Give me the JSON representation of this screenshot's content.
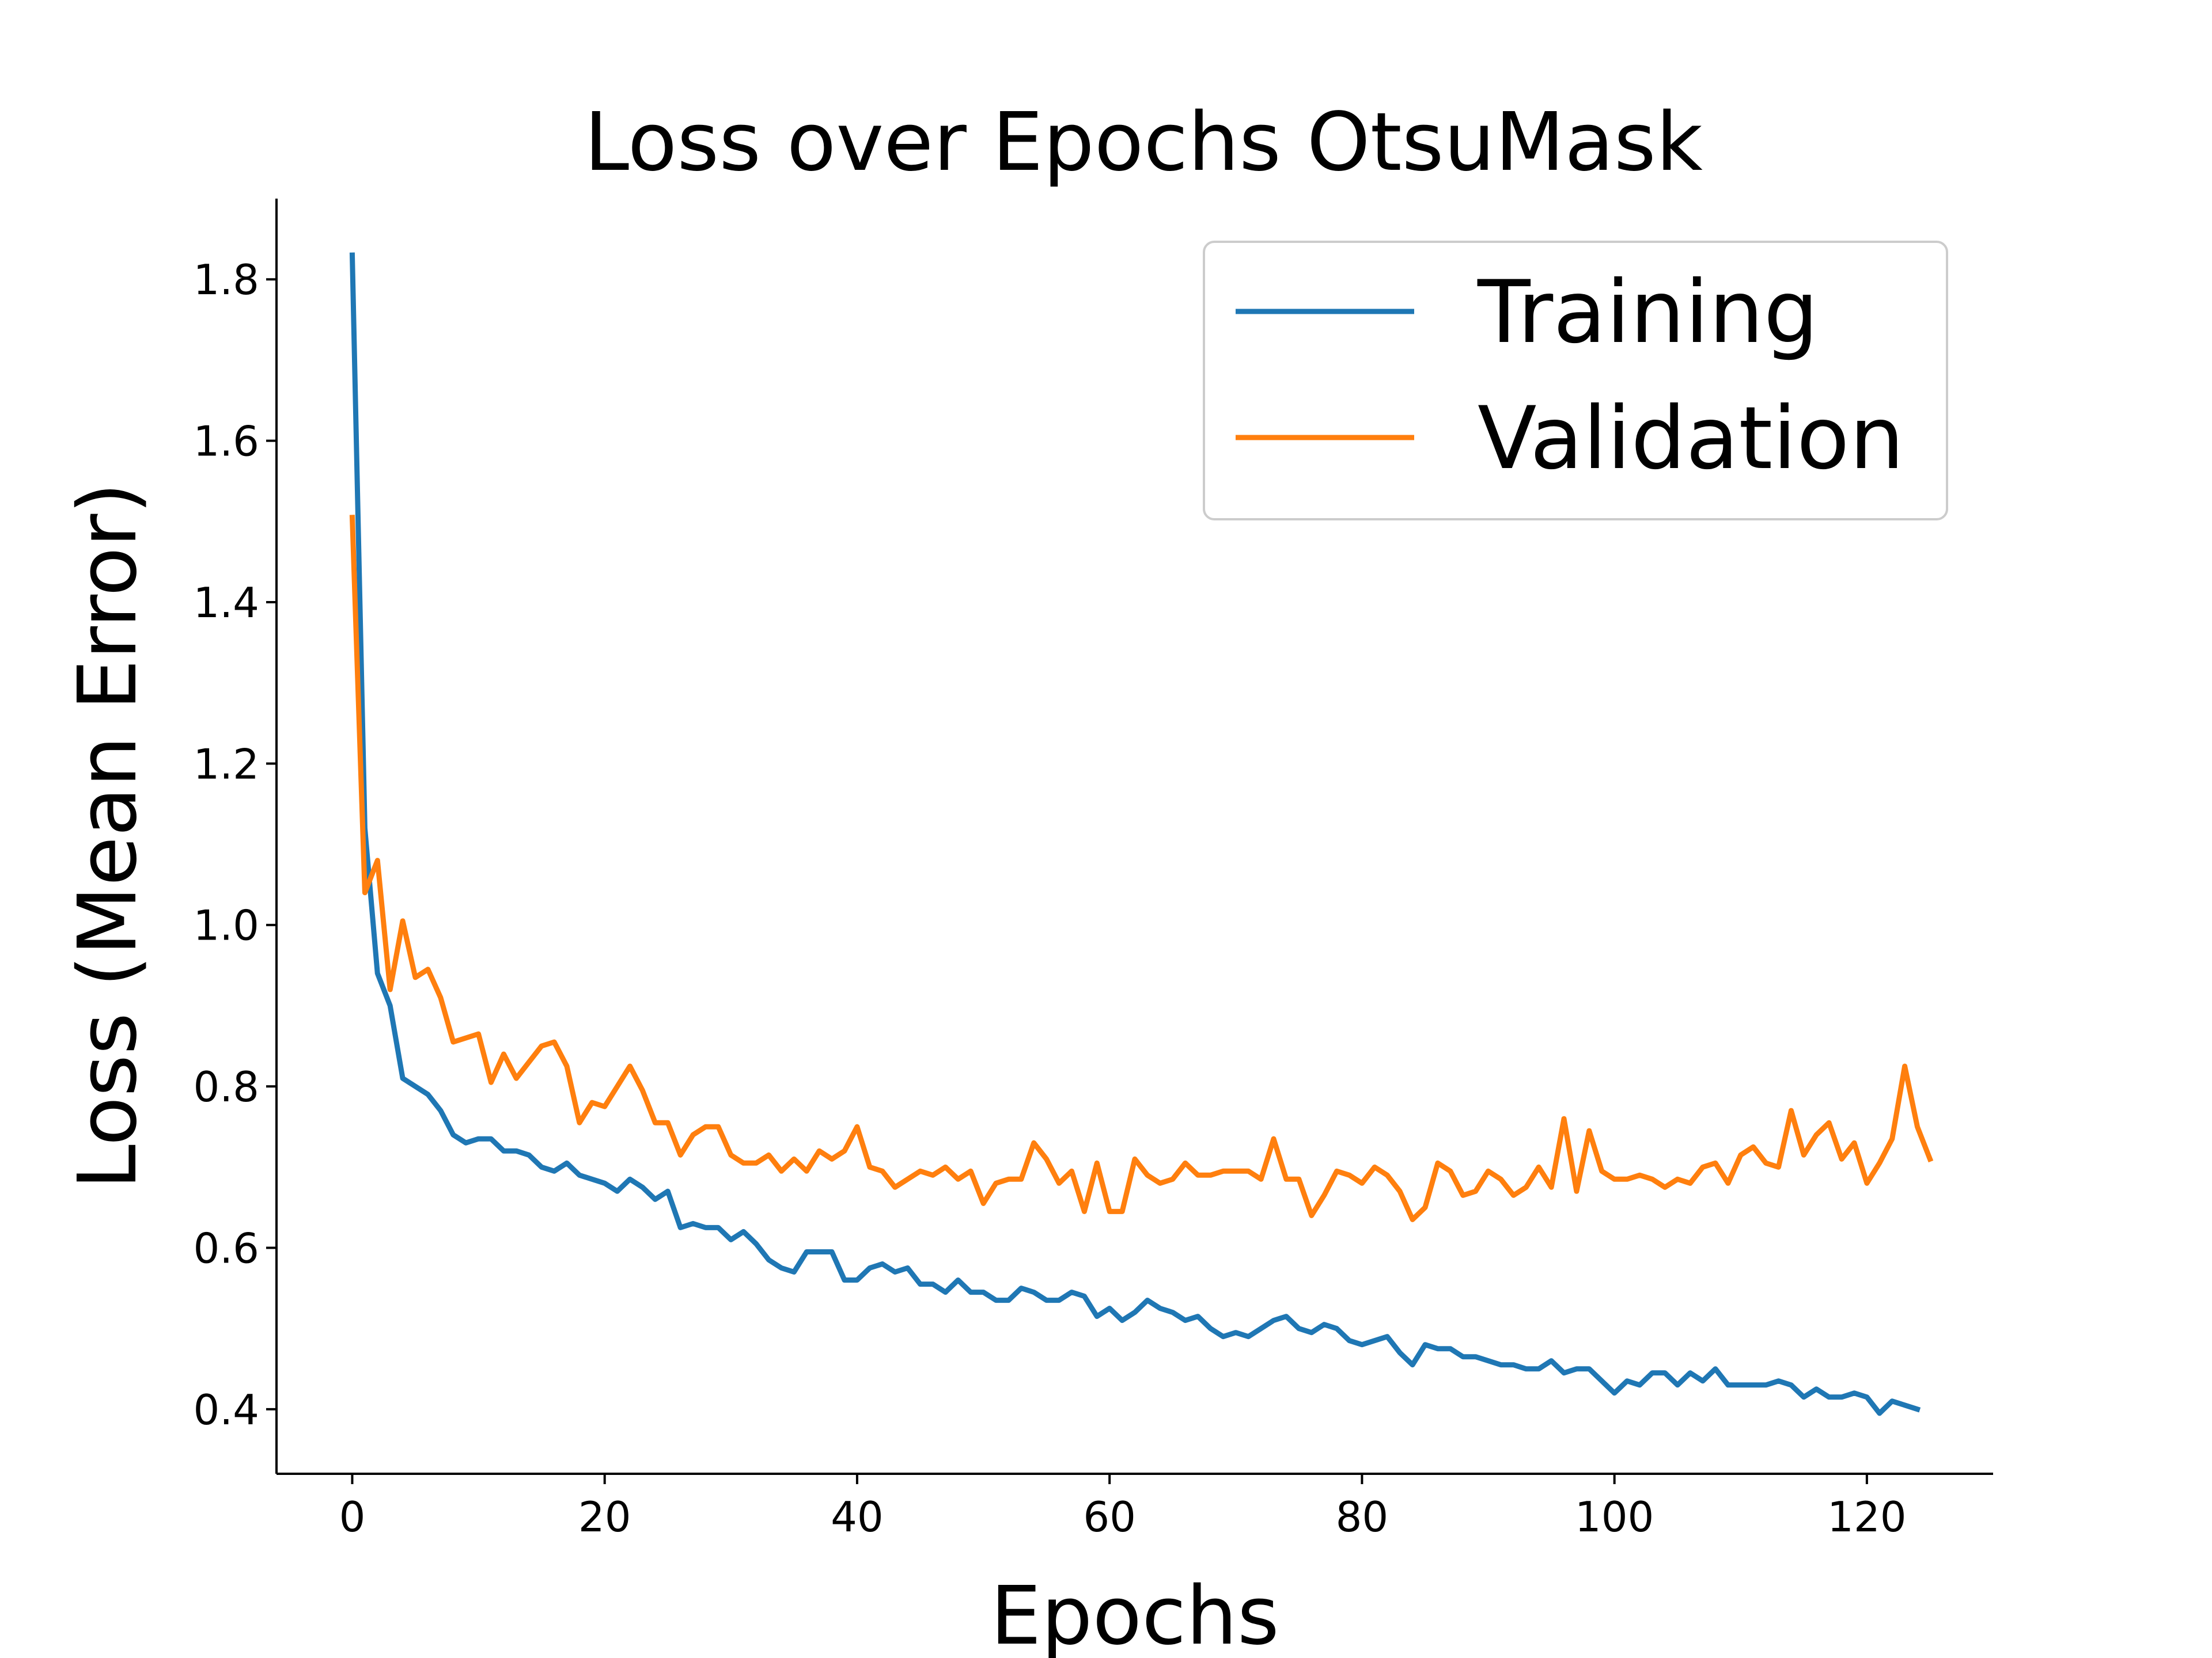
{
  "chart_data": {
    "type": "line",
    "title": "Loss over Epochs OtsuMask",
    "xlabel": "Epochs",
    "ylabel": "Loss (Mean Error)",
    "xlim": [
      -6,
      130
    ],
    "ylim": [
      0.32,
      1.9
    ],
    "xticks": [
      0,
      20,
      40,
      60,
      80,
      100,
      120
    ],
    "yticks": [
      0.4,
      0.6,
      0.8,
      1.0,
      1.2,
      1.4,
      1.6,
      1.8
    ],
    "xtick_labels": [
      "0",
      "20",
      "40",
      "60",
      "80",
      "100",
      "120"
    ],
    "ytick_labels": [
      "0.4",
      "0.6",
      "0.8",
      "1.0",
      "1.2",
      "1.4",
      "1.6",
      "1.8"
    ],
    "grid": false,
    "legend_position": "top-right",
    "series": [
      {
        "name": "Training",
        "color": "#1f77b4",
        "x_start": 0,
        "values": [
          1.83,
          1.12,
          0.94,
          0.9,
          0.81,
          0.8,
          0.79,
          0.77,
          0.74,
          0.73,
          0.735,
          0.735,
          0.72,
          0.72,
          0.715,
          0.7,
          0.695,
          0.705,
          0.69,
          0.685,
          0.68,
          0.67,
          0.685,
          0.675,
          0.66,
          0.67,
          0.625,
          0.63,
          0.625,
          0.625,
          0.61,
          0.62,
          0.605,
          0.585,
          0.575,
          0.57,
          0.595,
          0.595,
          0.595,
          0.56,
          0.56,
          0.575,
          0.58,
          0.57,
          0.575,
          0.555,
          0.555,
          0.545,
          0.56,
          0.545,
          0.545,
          0.535,
          0.535,
          0.55,
          0.545,
          0.535,
          0.535,
          0.545,
          0.54,
          0.515,
          0.525,
          0.51,
          0.52,
          0.535,
          0.525,
          0.52,
          0.51,
          0.515,
          0.5,
          0.49,
          0.495,
          0.49,
          0.5,
          0.51,
          0.515,
          0.5,
          0.495,
          0.505,
          0.5,
          0.485,
          0.48,
          0.485,
          0.49,
          0.47,
          0.455,
          0.48,
          0.475,
          0.475,
          0.465,
          0.465,
          0.46,
          0.455,
          0.455,
          0.45,
          0.45,
          0.46,
          0.445,
          0.45,
          0.45,
          0.435,
          0.42,
          0.435,
          0.43,
          0.445,
          0.445,
          0.43,
          0.445,
          0.435,
          0.45,
          0.43,
          0.43,
          0.43,
          0.43,
          0.435,
          0.43,
          0.415,
          0.425,
          0.415,
          0.415,
          0.42,
          0.415,
          0.395,
          0.41,
          0.405,
          0.4
        ]
      },
      {
        "name": "Validation",
        "color": "#ff7f0e",
        "x_start": 0,
        "values": [
          1.505,
          1.04,
          1.08,
          0.92,
          1.005,
          0.935,
          0.945,
          0.91,
          0.855,
          0.86,
          0.865,
          0.805,
          0.84,
          0.81,
          0.83,
          0.85,
          0.855,
          0.825,
          0.755,
          0.78,
          0.775,
          0.8,
          0.825,
          0.795,
          0.755,
          0.755,
          0.715,
          0.74,
          0.75,
          0.75,
          0.715,
          0.705,
          0.705,
          0.715,
          0.695,
          0.71,
          0.695,
          0.72,
          0.71,
          0.72,
          0.75,
          0.7,
          0.695,
          0.675,
          0.685,
          0.695,
          0.69,
          0.7,
          0.685,
          0.695,
          0.655,
          0.68,
          0.685,
          0.685,
          0.73,
          0.71,
          0.68,
          0.695,
          0.645,
          0.705,
          0.645,
          0.645,
          0.71,
          0.69,
          0.68,
          0.685,
          0.705,
          0.69,
          0.69,
          0.695,
          0.695,
          0.695,
          0.685,
          0.735,
          0.685,
          0.685,
          0.64,
          0.665,
          0.695,
          0.69,
          0.68,
          0.7,
          0.69,
          0.67,
          0.635,
          0.65,
          0.705,
          0.695,
          0.665,
          0.67,
          0.695,
          0.685,
          0.665,
          0.675,
          0.7,
          0.675,
          0.76,
          0.67,
          0.745,
          0.695,
          0.685,
          0.685,
          0.69,
          0.685,
          0.675,
          0.685,
          0.68,
          0.7,
          0.705,
          0.68,
          0.715,
          0.725,
          0.705,
          0.7,
          0.77,
          0.715,
          0.74,
          0.755,
          0.71,
          0.73,
          0.68,
          0.705,
          0.735,
          0.825,
          0.75,
          0.71
        ]
      }
    ]
  }
}
